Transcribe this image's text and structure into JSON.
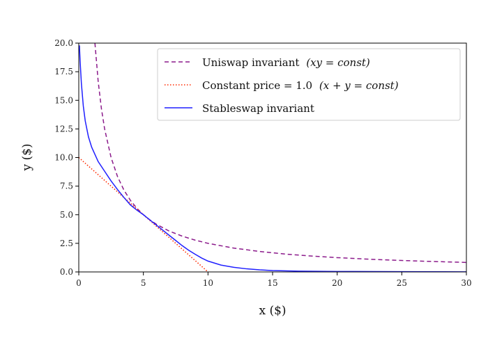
{
  "chart_data": {
    "type": "line",
    "title": "",
    "xlabel": "x ($)",
    "ylabel": "y ($)",
    "xlim": [
      0,
      30
    ],
    "ylim": [
      0,
      20
    ],
    "grid": false,
    "legend_position": "top-right",
    "x_ticks": [
      0,
      5,
      10,
      15,
      20,
      25,
      30
    ],
    "x_tick_labels": [
      "0",
      "5",
      "10",
      "15",
      "20",
      "25",
      "30"
    ],
    "y_ticks": [
      0,
      2.5,
      5,
      7.5,
      10,
      12.5,
      15,
      17.5,
      20
    ],
    "y_tick_labels": [
      "0.0",
      "2.5",
      "5.0",
      "7.5",
      "10.0",
      "12.5",
      "15.0",
      "17.5",
      "20.0"
    ],
    "series": [
      {
        "name": "Uniswap invariant",
        "name_suffix": "(xy = const)",
        "style": "dashed",
        "color": "#8b1a8b",
        "x": [
          1.25,
          1.5,
          1.75,
          2,
          2.5,
          3,
          3.5,
          4,
          4.5,
          5,
          5.5,
          6,
          7,
          8,
          9,
          10,
          12,
          14,
          16,
          18,
          20,
          22.5,
          25,
          27.5,
          30
        ],
        "y": [
          20,
          16.67,
          14.29,
          12.5,
          10,
          8.33,
          7.14,
          6.25,
          5.56,
          5,
          4.55,
          4.17,
          3.57,
          3.13,
          2.78,
          2.5,
          2.08,
          1.79,
          1.56,
          1.39,
          1.25,
          1.11,
          1,
          0.91,
          0.83
        ]
      },
      {
        "name": "Constant price = 1.0",
        "name_suffix": "(x + y = const)",
        "style": "dotted",
        "color": "#ff2a00",
        "x": [
          0,
          10
        ],
        "y": [
          10,
          0
        ]
      },
      {
        "name": "Stableswap invariant",
        "style": "solid",
        "color": "#1f1fff",
        "x": [
          0.05,
          0.1,
          0.2,
          0.35,
          0.5,
          0.75,
          1,
          1.5,
          2,
          2.5,
          3,
          3.5,
          4,
          4.5,
          5,
          5.5,
          6,
          6.5,
          7,
          7.5,
          8,
          8.5,
          9,
          9.5,
          10,
          11,
          12,
          13,
          14,
          15,
          17,
          20,
          25,
          30
        ],
        "y": [
          19.8,
          18.5,
          16.5,
          14.5,
          13.2,
          11.8,
          10.9,
          9.65,
          8.8,
          7.95,
          7.2,
          6.5,
          5.85,
          5.4,
          5.0,
          4.55,
          4.1,
          3.65,
          3.2,
          2.75,
          2.3,
          1.9,
          1.55,
          1.22,
          0.95,
          0.6,
          0.4,
          0.27,
          0.18,
          0.12,
          0.07,
          0.04,
          0.02,
          0.01
        ]
      }
    ]
  }
}
